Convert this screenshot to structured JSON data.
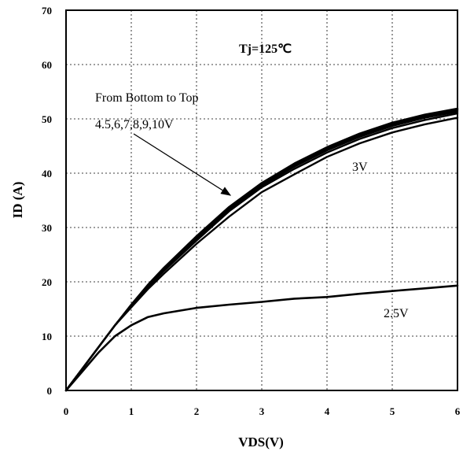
{
  "chart_data": {
    "type": "line",
    "title": "",
    "xlabel": "VDS(V)",
    "ylabel": "ID (A)",
    "xlim": [
      0,
      6
    ],
    "ylim": [
      0,
      70
    ],
    "xticks": [
      "0",
      "1",
      "2",
      "3",
      "4",
      "5",
      "6"
    ],
    "yticks": [
      "0",
      "10",
      "20",
      "30",
      "40",
      "50",
      "60",
      "70"
    ],
    "grid": true,
    "x": [
      0,
      0.25,
      0.5,
      0.75,
      1,
      1.25,
      1.5,
      2,
      2.5,
      3,
      3.5,
      4,
      4.5,
      5,
      5.5,
      6
    ],
    "series": [
      {
        "name": "2.5V",
        "values": [
          0,
          3.5,
          7,
          10,
          12,
          13.5,
          14.2,
          15.2,
          15.8,
          16.3,
          16.9,
          17.2,
          17.8,
          18.3,
          18.8,
          19.3
        ]
      },
      {
        "name": "3V",
        "values": [
          0,
          4,
          8,
          12,
          15.3,
          18.6,
          21.5,
          27,
          32,
          36.5,
          39.8,
          43,
          45.5,
          47.5,
          49,
          50.2
        ]
      },
      {
        "name": "4.5V",
        "values": [
          0,
          4,
          8,
          12,
          15.5,
          19,
          22,
          27.6,
          33,
          37.4,
          40.8,
          43.8,
          46.3,
          48.3,
          49.8,
          51
        ]
      },
      {
        "name": "6V",
        "values": [
          0,
          4,
          8,
          12,
          15.6,
          19.1,
          22.2,
          27.9,
          33.3,
          37.7,
          41.2,
          44.2,
          46.7,
          48.7,
          50.2,
          51.3
        ]
      },
      {
        "name": "7V",
        "values": [
          0,
          4,
          8,
          12,
          15.7,
          19.2,
          22.3,
          28.1,
          33.5,
          37.9,
          41.4,
          44.4,
          46.9,
          48.9,
          50.4,
          51.5
        ]
      },
      {
        "name": "8V",
        "values": [
          0,
          4,
          8,
          12,
          15.7,
          19.3,
          22.4,
          28.2,
          33.6,
          38,
          41.6,
          44.6,
          47.1,
          49.1,
          50.6,
          51.7
        ]
      },
      {
        "name": "9V",
        "values": [
          0,
          4,
          8,
          12,
          15.8,
          19.3,
          22.5,
          28.3,
          33.7,
          38.1,
          41.7,
          44.7,
          47.2,
          49.2,
          50.7,
          51.8
        ]
      },
      {
        "name": "10V",
        "values": [
          0,
          4,
          8,
          12,
          15.8,
          19.4,
          22.6,
          28.4,
          33.8,
          38.2,
          41.8,
          44.8,
          47.3,
          49.3,
          50.8,
          51.9
        ]
      }
    ],
    "annotations": {
      "tj": "Tj=125℃",
      "from_line1": "From Bottom to Top",
      "from_line2": "4.5,6,7,8,9,10V",
      "label_3v": "3V",
      "label_25v": "2.5V"
    }
  }
}
